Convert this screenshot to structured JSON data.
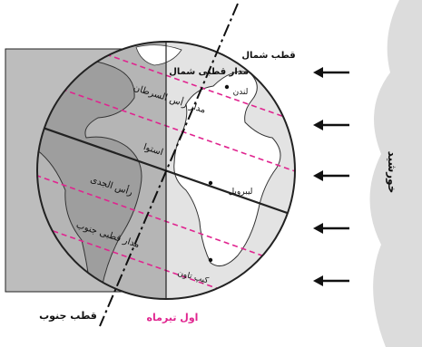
{
  "labels": {
    "north_pole": "قطب شمال",
    "arctic_circle": "مدار قطبی شمال",
    "tropic_cancer": "مدار رأس السرطان",
    "equator": "استوا",
    "tropic_capricorn": "رأس الجدی",
    "antarctic_circle": "مدار قطبی جنوب",
    "south_pole": "قطب جنوب",
    "london": "لندن",
    "libreville": "لیبرویل",
    "cape_town": "کیپ تاون",
    "sun": "خورشید",
    "date": "اول تیرماه"
  },
  "colors": {
    "night_shade": "#bdbdbd",
    "land_dark": "#9e9e9e",
    "ocean": "#e3e3e3",
    "land_day": "#ffffff",
    "latitude_lines": "#e0248f",
    "date_label": "#e0248f",
    "sun_glow": "#dcdcdc"
  }
}
